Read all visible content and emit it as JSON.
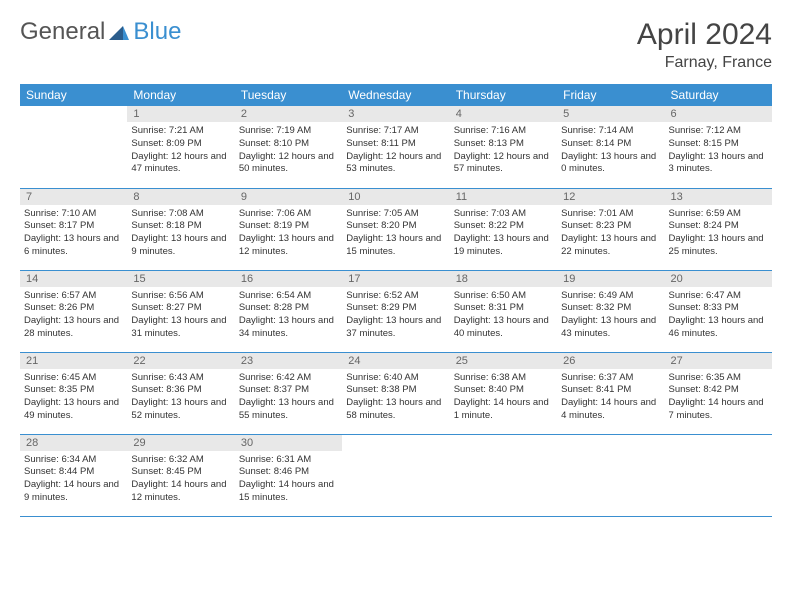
{
  "logo": {
    "word1": "General",
    "word2": "Blue"
  },
  "title": {
    "month": "April 2024",
    "location": "Farnay, France"
  },
  "weekdays": [
    "Sunday",
    "Monday",
    "Tuesday",
    "Wednesday",
    "Thursday",
    "Friday",
    "Saturday"
  ],
  "colors": {
    "header_bg": "#3a8fd0",
    "header_fg": "#ffffff",
    "daynum_bg": "#e8e8e8",
    "rule": "#3a8fd0"
  },
  "font": {
    "body_size_pt": 9.5,
    "header_size_pt": 12,
    "month_size_pt": 30
  },
  "layout": {
    "cols": 7,
    "rows": 5,
    "first_weekday_index": 1,
    "days_in_month": 30
  },
  "days": {
    "1": {
      "sunrise": "7:21 AM",
      "sunset": "8:09 PM",
      "daylight": "12 hours and 47 minutes."
    },
    "2": {
      "sunrise": "7:19 AM",
      "sunset": "8:10 PM",
      "daylight": "12 hours and 50 minutes."
    },
    "3": {
      "sunrise": "7:17 AM",
      "sunset": "8:11 PM",
      "daylight": "12 hours and 53 minutes."
    },
    "4": {
      "sunrise": "7:16 AM",
      "sunset": "8:13 PM",
      "daylight": "12 hours and 57 minutes."
    },
    "5": {
      "sunrise": "7:14 AM",
      "sunset": "8:14 PM",
      "daylight": "13 hours and 0 minutes."
    },
    "6": {
      "sunrise": "7:12 AM",
      "sunset": "8:15 PM",
      "daylight": "13 hours and 3 minutes."
    },
    "7": {
      "sunrise": "7:10 AM",
      "sunset": "8:17 PM",
      "daylight": "13 hours and 6 minutes."
    },
    "8": {
      "sunrise": "7:08 AM",
      "sunset": "8:18 PM",
      "daylight": "13 hours and 9 minutes."
    },
    "9": {
      "sunrise": "7:06 AM",
      "sunset": "8:19 PM",
      "daylight": "13 hours and 12 minutes."
    },
    "10": {
      "sunrise": "7:05 AM",
      "sunset": "8:20 PM",
      "daylight": "13 hours and 15 minutes."
    },
    "11": {
      "sunrise": "7:03 AM",
      "sunset": "8:22 PM",
      "daylight": "13 hours and 19 minutes."
    },
    "12": {
      "sunrise": "7:01 AM",
      "sunset": "8:23 PM",
      "daylight": "13 hours and 22 minutes."
    },
    "13": {
      "sunrise": "6:59 AM",
      "sunset": "8:24 PM",
      "daylight": "13 hours and 25 minutes."
    },
    "14": {
      "sunrise": "6:57 AM",
      "sunset": "8:26 PM",
      "daylight": "13 hours and 28 minutes."
    },
    "15": {
      "sunrise": "6:56 AM",
      "sunset": "8:27 PM",
      "daylight": "13 hours and 31 minutes."
    },
    "16": {
      "sunrise": "6:54 AM",
      "sunset": "8:28 PM",
      "daylight": "13 hours and 34 minutes."
    },
    "17": {
      "sunrise": "6:52 AM",
      "sunset": "8:29 PM",
      "daylight": "13 hours and 37 minutes."
    },
    "18": {
      "sunrise": "6:50 AM",
      "sunset": "8:31 PM",
      "daylight": "13 hours and 40 minutes."
    },
    "19": {
      "sunrise": "6:49 AM",
      "sunset": "8:32 PM",
      "daylight": "13 hours and 43 minutes."
    },
    "20": {
      "sunrise": "6:47 AM",
      "sunset": "8:33 PM",
      "daylight": "13 hours and 46 minutes."
    },
    "21": {
      "sunrise": "6:45 AM",
      "sunset": "8:35 PM",
      "daylight": "13 hours and 49 minutes."
    },
    "22": {
      "sunrise": "6:43 AM",
      "sunset": "8:36 PM",
      "daylight": "13 hours and 52 minutes."
    },
    "23": {
      "sunrise": "6:42 AM",
      "sunset": "8:37 PM",
      "daylight": "13 hours and 55 minutes."
    },
    "24": {
      "sunrise": "6:40 AM",
      "sunset": "8:38 PM",
      "daylight": "13 hours and 58 minutes."
    },
    "25": {
      "sunrise": "6:38 AM",
      "sunset": "8:40 PM",
      "daylight": "14 hours and 1 minute."
    },
    "26": {
      "sunrise": "6:37 AM",
      "sunset": "8:41 PM",
      "daylight": "14 hours and 4 minutes."
    },
    "27": {
      "sunrise": "6:35 AM",
      "sunset": "8:42 PM",
      "daylight": "14 hours and 7 minutes."
    },
    "28": {
      "sunrise": "6:34 AM",
      "sunset": "8:44 PM",
      "daylight": "14 hours and 9 minutes."
    },
    "29": {
      "sunrise": "6:32 AM",
      "sunset": "8:45 PM",
      "daylight": "14 hours and 12 minutes."
    },
    "30": {
      "sunrise": "6:31 AM",
      "sunset": "8:46 PM",
      "daylight": "14 hours and 15 minutes."
    }
  },
  "labels": {
    "sunrise": "Sunrise:",
    "sunset": "Sunset:",
    "daylight": "Daylight:"
  }
}
